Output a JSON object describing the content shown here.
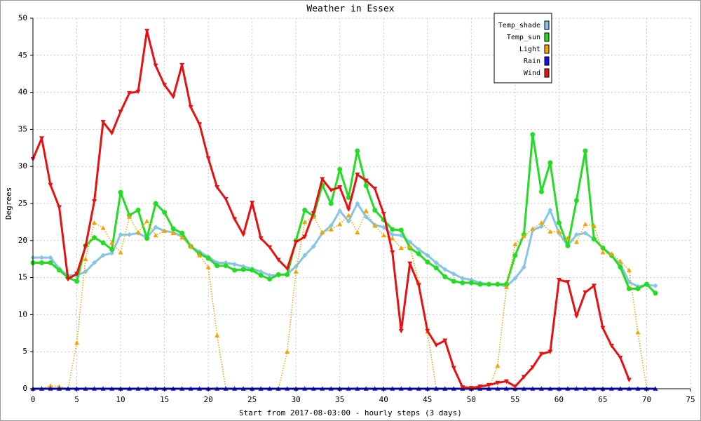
{
  "chart_data": {
    "type": "line",
    "title": "Weather in Essex",
    "xlabel": "Start from 2017-08-03:00 - hourly steps (3 days)",
    "ylabel": "Degrees",
    "xlim": [
      0,
      75
    ],
    "ylim": [
      0,
      50
    ],
    "xticks": [
      0,
      5,
      10,
      15,
      20,
      25,
      30,
      35,
      40,
      45,
      50,
      55,
      60,
      65,
      70,
      75
    ],
    "yticks": [
      0,
      5,
      10,
      15,
      20,
      25,
      30,
      35,
      40,
      45,
      50
    ],
    "grid": true,
    "legend": "top-right",
    "x": [
      0,
      1,
      2,
      3,
      4,
      5,
      6,
      7,
      8,
      9,
      10,
      11,
      12,
      13,
      14,
      15,
      16,
      17,
      18,
      19,
      20,
      21,
      22,
      23,
      24,
      25,
      26,
      27,
      28,
      29,
      30,
      31,
      32,
      33,
      34,
      35,
      36,
      37,
      38,
      39,
      40,
      41,
      42,
      43,
      44,
      45,
      46,
      47,
      48,
      49,
      50,
      51,
      52,
      53,
      54,
      55,
      56,
      57,
      58,
      59,
      60,
      61,
      62,
      63,
      64,
      65,
      66,
      67,
      68,
      69,
      70,
      71
    ],
    "series": [
      {
        "name": "Temp_shade",
        "color": "#87c5e6",
        "marker": "diamond",
        "dash": "solid",
        "values": [
          17.7,
          17.7,
          17.7,
          16.2,
          15.3,
          15.3,
          15.8,
          17,
          18,
          18.3,
          20.8,
          20.8,
          21,
          20.4,
          21.8,
          21.3,
          21.1,
          20.6,
          19.2,
          18.5,
          17.8,
          17,
          17,
          16.8,
          16.5,
          16.2,
          15.8,
          15.3,
          15.3,
          15.5,
          16.5,
          18,
          19.2,
          21,
          22,
          24,
          22.6,
          25,
          23.2,
          22.1,
          21.8,
          20.8,
          20.7,
          19.8,
          18.8,
          18,
          17,
          16.1,
          15.5,
          14.9,
          14.7,
          14.3,
          14.1,
          14.1,
          13.8,
          14.9,
          16.4,
          21.4,
          21.9,
          24.1,
          21,
          19.3,
          20.8,
          21,
          20.2,
          19,
          17.9,
          16.8,
          14.4,
          13.8,
          14,
          13.9
        ]
      },
      {
        "name": "Temp_sun",
        "color": "#22dd22",
        "marker": "circle",
        "dash": "solid",
        "values": [
          17,
          17,
          17,
          16,
          15,
          14.5,
          19.3,
          20.4,
          19.7,
          18.8,
          26.5,
          23.4,
          24.1,
          20.3,
          25,
          23.8,
          21.6,
          21,
          19.2,
          18.2,
          17.6,
          16.6,
          16.6,
          16,
          16.1,
          16,
          15.3,
          14.8,
          15.4,
          15.4,
          20,
          24.1,
          23.3,
          27.5,
          25,
          29.6,
          25.8,
          32.1,
          27.4,
          24.1,
          22.8,
          21.5,
          21.4,
          19,
          18.2,
          17.1,
          16.3,
          15.1,
          14.5,
          14.3,
          14.3,
          14.1,
          14.1,
          14.1,
          14.1,
          18,
          20.8,
          34.3,
          26.6,
          30.5,
          22.4,
          19.3,
          25.4,
          32.1,
          20.2,
          19,
          18,
          16.4,
          13.5,
          13.5,
          14.1,
          12.9
        ]
      },
      {
        "name": "Light",
        "color": "#f5a300",
        "marker": "triangle-up",
        "dash": "dotted",
        "values": [
          0,
          0,
          0.4,
          0.3,
          0,
          6.2,
          17.5,
          22.4,
          21.7,
          19.7,
          18.4,
          23.2,
          21.1,
          22.6,
          20.7,
          21.3,
          21,
          20.4,
          19.2,
          18,
          16.4,
          7.2,
          0,
          0,
          0,
          0,
          0,
          0,
          0,
          5,
          15.8,
          22.5,
          23.2,
          21.1,
          21.5,
          22.2,
          23.4,
          21.1,
          24,
          22,
          20.7,
          20.3,
          19,
          19.2,
          14.3,
          7.7,
          0,
          0,
          0,
          0,
          0,
          0,
          0,
          3.1,
          13.7,
          19.5,
          20.6,
          21.6,
          22.4,
          21.2,
          21.2,
          20.3,
          19.8,
          22.2,
          22,
          18.4,
          18.2,
          17.2,
          16,
          7.6,
          0,
          0
        ]
      },
      {
        "name": "Rain",
        "color": "#1010e8",
        "marker": "triangle-up",
        "dash": "solid",
        "values": [
          0,
          0,
          0,
          0,
          0,
          0,
          0,
          0,
          0,
          0,
          0,
          0,
          0,
          0,
          0,
          0,
          0,
          0,
          0,
          0,
          0,
          0,
          0,
          0,
          0,
          0,
          0,
          0,
          0,
          0,
          0,
          0,
          0,
          0,
          0,
          0,
          0,
          0,
          0,
          0,
          0,
          0,
          0,
          0,
          0,
          0,
          0,
          0,
          0,
          0,
          0,
          0,
          0,
          0,
          0,
          0,
          0,
          0,
          0,
          0,
          0,
          0,
          0,
          0,
          0,
          0,
          0,
          0,
          0,
          0,
          0,
          0
        ]
      },
      {
        "name": "Wind",
        "color": "#e81010",
        "marker": "triangle-down",
        "dash": "solid",
        "values": [
          31,
          33.8,
          27.5,
          24.5,
          14.8,
          15.5,
          19.2,
          25.3,
          36,
          34.5,
          37.4,
          39.9,
          40.1,
          48.3,
          43.6,
          41,
          39.4,
          43.7,
          38,
          35.7,
          31.1,
          27.2,
          25.6,
          22.9,
          20.8,
          25.1,
          20.3,
          19.1,
          17.4,
          16.2,
          19.8,
          20.5,
          23.7,
          28.3,
          26.8,
          27.2,
          24.2,
          28.9,
          28.1,
          27,
          23.6,
          18.4,
          7.8,
          16.9,
          14,
          7.8,
          5.9,
          6.5,
          2.8,
          0.2,
          0.1,
          0.3,
          0.5,
          0.8,
          1,
          0.3,
          1.6,
          2.9,
          4.7,
          5,
          14.7,
          14.4,
          9.8,
          13,
          13.9,
          8.2,
          5.8,
          4.2,
          1.2,
          null,
          null,
          null
        ]
      }
    ]
  }
}
